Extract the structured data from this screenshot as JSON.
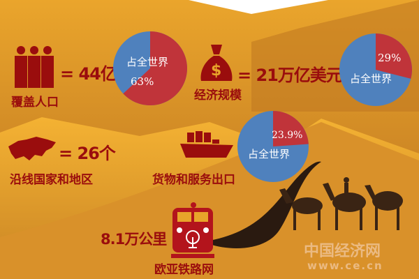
{
  "colors": {
    "accent": "#9a0d0d",
    "pie_red": "#c0343a",
    "pie_blue": "#4f81bd",
    "sand": "#e8a42a",
    "dune_dark": "#a8621f"
  },
  "population": {
    "icon": "people-icon",
    "value": "= 44亿",
    "label": "覆盖人口",
    "pie_text": "占全世界",
    "pie_pct_label": "63%",
    "share": 63
  },
  "economy": {
    "icon": "money-bag-icon",
    "value": "= 21万亿美元",
    "label": "经济规模",
    "pie_text": "占全世界",
    "pie_pct_label": "29%",
    "share": 29
  },
  "countries": {
    "icon": "eurasia-map-icon",
    "value": "= 26个",
    "label": "沿线国家和地区"
  },
  "exports": {
    "icon": "cargo-ship-icon",
    "label": "货物和服务出口",
    "pie_text": "占全世界",
    "pie_pct_label": "23.9%",
    "share": 23.9
  },
  "railway": {
    "icon": "train-icon",
    "value": "8.1万公里",
    "label": "欧亚铁路网"
  },
  "decor": {
    "camels": "camel-caravan-icon",
    "road": "road-icon"
  },
  "watermark": {
    "name": "中国经济网",
    "url": "www.ce.cn"
  }
}
